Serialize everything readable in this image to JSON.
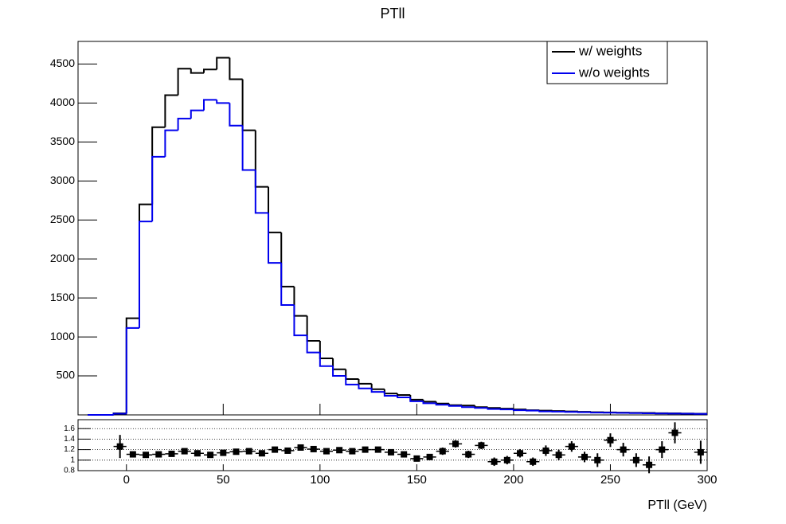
{
  "chart_data": [
    {
      "type": "histogram",
      "title": "PTll",
      "xlabel": "PTll (GeV)",
      "bins": [
        -20,
        -13.33,
        -6.67,
        0,
        6.67,
        13.33,
        20,
        26.67,
        33.33,
        40,
        46.67,
        53.33,
        60,
        66.67,
        73.33,
        80,
        86.67,
        93.33,
        100,
        106.67,
        113.33,
        120,
        126.67,
        133.33,
        140,
        146.67,
        153.33,
        160,
        166.67,
        173.33,
        180,
        186.67,
        193.33,
        200,
        206.67,
        213.33,
        220,
        226.67,
        233.33,
        240,
        246.67,
        253.33,
        260,
        266.67,
        273.33,
        280,
        286.67,
        293.33,
        300
      ],
      "series": [
        {
          "name": "w/ weights",
          "color": "#000000",
          "values": [
            0,
            0,
            20,
            1240,
            2700,
            3690,
            4100,
            4440,
            4385,
            4430,
            4580,
            4305,
            3650,
            2925,
            2340,
            1645,
            1270,
            950,
            725,
            585,
            460,
            400,
            330,
            275,
            255,
            195,
            170,
            145,
            125,
            120,
            100,
            90,
            80,
            70,
            60,
            55,
            50,
            45,
            40,
            35,
            32,
            30,
            27,
            25,
            22,
            20,
            18,
            15
          ]
        },
        {
          "name": "w/o weights",
          "color": "#0000ee",
          "values": [
            0,
            0,
            15,
            1115,
            2480,
            3310,
            3650,
            3800,
            3905,
            4040,
            4000,
            3710,
            3140,
            2590,
            1950,
            1410,
            1020,
            800,
            625,
            500,
            390,
            340,
            295,
            245,
            225,
            175,
            150,
            130,
            115,
            100,
            90,
            75,
            70,
            60,
            55,
            45,
            42,
            38,
            35,
            30,
            28,
            26,
            23,
            21,
            18,
            17,
            15,
            13
          ]
        }
      ],
      "xlim": [
        -25,
        300
      ],
      "xticks": [
        0,
        50,
        100,
        150,
        200,
        250,
        300
      ],
      "ylim": [
        0,
        4790
      ],
      "yticks": [
        500,
        1000,
        1500,
        2000,
        2500,
        3000,
        3500,
        4000,
        4500
      ],
      "legend": "top-right"
    },
    {
      "type": "errorbar",
      "values": [
        null,
        null,
        1.26,
        1.11,
        1.1,
        1.11,
        1.12,
        1.17,
        1.13,
        1.1,
        1.14,
        1.16,
        1.17,
        1.13,
        1.2,
        1.18,
        1.24,
        1.21,
        1.17,
        1.19,
        1.17,
        1.2,
        1.2,
        1.15,
        1.11,
        1.03,
        1.06,
        1.17,
        1.31,
        1.11,
        1.28,
        0.97,
        1.0,
        1.13,
        0.97,
        1.18,
        1.1,
        1.26,
        1.06,
        1.0,
        1.38,
        1.2,
        1.0,
        0.91,
        1.2,
        1.52,
        null,
        1.15
      ],
      "errors": [
        null,
        null,
        0.22,
        0.02,
        0.02,
        0.02,
        0.02,
        0.02,
        0.02,
        0.02,
        0.02,
        0.02,
        0.02,
        0.03,
        0.03,
        0.03,
        0.03,
        0.03,
        0.03,
        0.04,
        0.04,
        0.04,
        0.04,
        0.05,
        0.05,
        0.05,
        0.05,
        0.07,
        0.07,
        0.07,
        0.07,
        0.08,
        0.08,
        0.08,
        0.08,
        0.1,
        0.1,
        0.1,
        0.1,
        0.13,
        0.13,
        0.13,
        0.13,
        0.16,
        0.16,
        0.2,
        null,
        0.22
      ],
      "color": "#000000",
      "ylim": [
        0.8,
        1.77
      ],
      "yticks": [
        0.8,
        1,
        1.2,
        1.4,
        1.6
      ],
      "grid": true
    }
  ]
}
